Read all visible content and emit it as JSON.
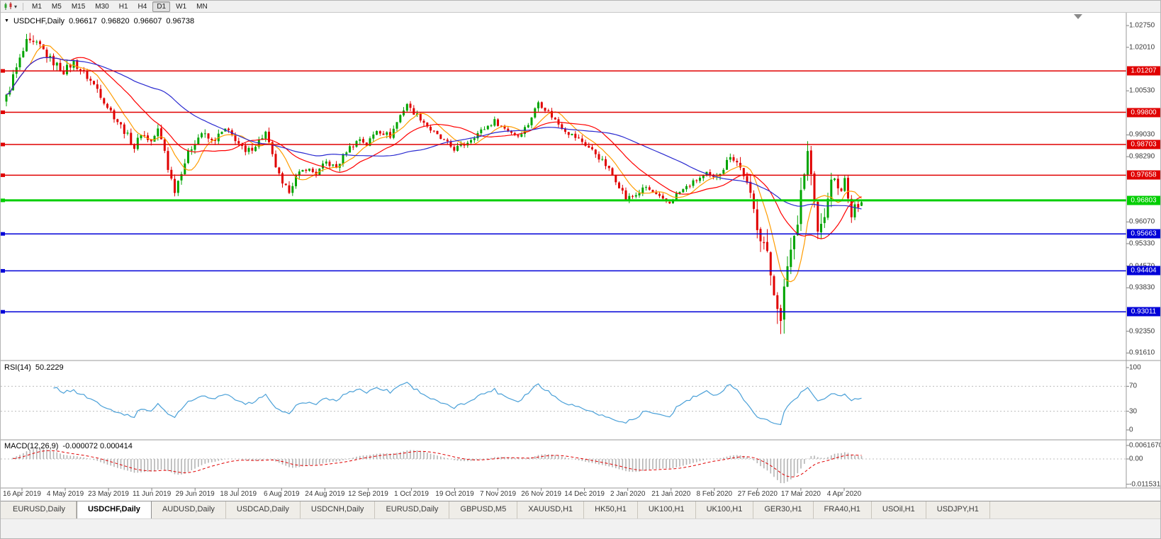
{
  "toolbar": {
    "timeframes": [
      {
        "label": "M1",
        "active": false
      },
      {
        "label": "M5",
        "active": false
      },
      {
        "label": "M15",
        "active": false
      },
      {
        "label": "M30",
        "active": false
      },
      {
        "label": "H1",
        "active": false
      },
      {
        "label": "H4",
        "active": false
      },
      {
        "label": "D1",
        "active": true
      },
      {
        "label": "W1",
        "active": false
      },
      {
        "label": "MN",
        "active": false
      }
    ]
  },
  "chart": {
    "symbol_title": "USDCHF,Daily",
    "ohlc": {
      "open": "0.96617",
      "high": "0.96820",
      "low": "0.96607",
      "close": "0.96738"
    }
  },
  "price_axis": {
    "ticks": [
      "1.02750",
      "1.02010",
      "1.00530",
      "0.99030",
      "0.98290",
      "0.96070",
      "0.95330",
      "0.94570",
      "0.93830",
      "0.92350",
      "0.91610"
    ]
  },
  "hlines": [
    {
      "price": "1.01207",
      "color": "#e00000",
      "role": "resistance",
      "thick": false
    },
    {
      "price": "0.99800",
      "color": "#e00000",
      "role": "resistance",
      "thick": false
    },
    {
      "price": "0.98703",
      "color": "#e00000",
      "role": "resistance",
      "thick": false
    },
    {
      "price": "0.97658",
      "color": "#e00000",
      "role": "resistance",
      "thick": false
    },
    {
      "price": "0.96803",
      "color": "#00ce00",
      "role": "current-price",
      "thick": true
    },
    {
      "price": "0.95663",
      "color": "#0000d8",
      "role": "support",
      "thick": false
    },
    {
      "price": "0.94404",
      "color": "#0000d8",
      "role": "support",
      "thick": false
    },
    {
      "price": "0.93011",
      "color": "#0000d8",
      "role": "support",
      "thick": false
    }
  ],
  "indicators": {
    "rsi": {
      "label": "RSI(14)",
      "value": "50.2229",
      "levels": [
        {
          "label": "100",
          "value": 100
        },
        {
          "label": "70",
          "value": 70
        },
        {
          "label": "30",
          "value": 30
        },
        {
          "label": "0",
          "value": 0
        }
      ],
      "dashed_levels": [
        70,
        30
      ]
    },
    "macd": {
      "label": "MACD(12,26,9)",
      "values": "-0.000072 0.000414",
      "axis": [
        {
          "label": "0.0061670",
          "value": 0.006167
        },
        {
          "label": "0.00",
          "value": 0
        },
        {
          "label": "-0.0115310",
          "value": -0.011531
        }
      ]
    }
  },
  "date_axis": {
    "labels": [
      "16 Apr 2019",
      "4 May 2019",
      "23 May 2019",
      "11 Jun 2019",
      "29 Jun 2019",
      "18 Jul 2019",
      "6 Aug 2019",
      "24 Aug 2019",
      "12 Sep 2019",
      "1 Oct 2019",
      "19 Oct 2019",
      "7 Nov 2019",
      "26 Nov 2019",
      "14 Dec 2019",
      "2 Jan 2020",
      "21 Jan 2020",
      "8 Feb 2020",
      "27 Feb 2020",
      "17 Mar 2020",
      "4 Apr 2020"
    ]
  },
  "tabs": [
    {
      "label": "EURUSD,Daily",
      "active": false
    },
    {
      "label": "USDCHF,Daily",
      "active": true
    },
    {
      "label": "AUDUSD,Daily",
      "active": false
    },
    {
      "label": "USDCAD,Daily",
      "active": false
    },
    {
      "label": "USDCNH,Daily",
      "active": false
    },
    {
      "label": "EURUSD,Daily",
      "active": false
    },
    {
      "label": "GBPUSD,M5",
      "active": false
    },
    {
      "label": "XAUUSD,H1",
      "active": false
    },
    {
      "label": "HK50,H1",
      "active": false
    },
    {
      "label": "UK100,H1",
      "active": false
    },
    {
      "label": "UK100,H1",
      "active": false
    },
    {
      "label": "GER30,H1",
      "active": false
    },
    {
      "label": "FRA40,H1",
      "active": false
    },
    {
      "label": "USOil,H1",
      "active": false
    },
    {
      "label": "USDJPY,H1",
      "active": false
    }
  ],
  "colors": {
    "candle_up": "#00a400",
    "candle_down": "#e00000",
    "rsi_line": "#4aa0d8",
    "macd_hist": "#b4b4b4",
    "macd_signal": "#e00000",
    "separator": "#9a9a9a",
    "tick": "#808080",
    "level_dash": "#bdbdbd"
  },
  "chart_data": {
    "type": "candlestick",
    "symbol": "USDCHF",
    "timeframe": "Daily",
    "title": "USDCHF,Daily",
    "last_ohlc": {
      "open": 0.96617,
      "high": 0.9682,
      "low": 0.96607,
      "close": 0.96738
    },
    "num_candles": 255,
    "y_axis_range": [
      0.9124,
      1.0327
    ],
    "y_axis_ticks": [
      1.0275,
      1.0201,
      1.0053,
      0.9903,
      0.9829,
      0.9607,
      0.9533,
      0.9457,
      0.9383,
      0.9235,
      0.9161
    ],
    "x_axis_labels": [
      "16 Apr 2019",
      "4 May 2019",
      "23 May 2019",
      "11 Jun 2019",
      "29 Jun 2019",
      "18 Jul 2019",
      "6 Aug 2019",
      "24 Aug 2019",
      "12 Sep 2019",
      "1 Oct 2019",
      "19 Oct 2019",
      "7 Nov 2019",
      "26 Nov 2019",
      "14 Dec 2019",
      "2 Jan 2020",
      "21 Jan 2020",
      "8 Feb 2020",
      "27 Feb 2020",
      "17 Mar 2020",
      "4 Apr 2020"
    ],
    "horizontal_levels": {
      "resistance": [
        1.01207,
        0.998,
        0.98703,
        0.97658
      ],
      "current": 0.96803,
      "support": [
        0.95663,
        0.94404,
        0.93011
      ]
    },
    "indicators": {
      "rsi_period": 14,
      "rsi_last": 50.2229,
      "macd_params": [
        12,
        26,
        9
      ],
      "macd_last": -7.2e-05,
      "macd_signal_last": 0.000414
    },
    "moving_averages": [
      {
        "period": 8,
        "color": "#ff9c00"
      },
      {
        "period": 20,
        "color": "#ff0000"
      },
      {
        "period": 45,
        "color": "#2a2ad0"
      }
    ],
    "price_path_anchors": [
      [
        0,
        1.003
      ],
      [
        2,
        1.01
      ],
      [
        6,
        1.0215
      ],
      [
        10,
        1.0205
      ],
      [
        13,
        1.016
      ],
      [
        17,
        1.012
      ],
      [
        20,
        1.015
      ],
      [
        24,
        1.01
      ],
      [
        27,
        1.006
      ],
      [
        30,
        1.0
      ],
      [
        33,
        0.995
      ],
      [
        36,
        0.99
      ],
      [
        38,
        0.986
      ],
      [
        40,
        0.991
      ],
      [
        43,
        0.988
      ],
      [
        45,
        0.992
      ],
      [
        47,
        0.985
      ],
      [
        48,
        0.979
      ],
      [
        50,
        0.9715
      ],
      [
        52,
        0.978
      ],
      [
        54,
        0.984
      ],
      [
        56,
        0.988
      ],
      [
        58,
        0.991
      ],
      [
        61,
        0.988
      ],
      [
        65,
        0.992
      ],
      [
        68,
        0.989
      ],
      [
        71,
        0.984
      ],
      [
        74,
        0.987
      ],
      [
        77,
        0.991
      ],
      [
        79,
        0.983
      ],
      [
        82,
        0.973
      ],
      [
        84,
        0.9715
      ],
      [
        86,
        0.976
      ],
      [
        89,
        0.979
      ],
      [
        92,
        0.977
      ],
      [
        95,
        0.981
      ],
      [
        98,
        0.979
      ],
      [
        101,
        0.985
      ],
      [
        105,
        0.989
      ],
      [
        107,
        0.987
      ],
      [
        110,
        0.992
      ],
      [
        114,
        0.99
      ],
      [
        117,
        0.997
      ],
      [
        119,
        1.001
      ],
      [
        120,
        0.999
      ],
      [
        123,
        0.996
      ],
      [
        126,
        0.992
      ],
      [
        129,
        0.989
      ],
      [
        133,
        0.9855
      ],
      [
        136,
        0.987
      ],
      [
        139,
        0.99
      ],
      [
        142,
        0.9925
      ],
      [
        145,
        0.995
      ],
      [
        148,
        0.9925
      ],
      [
        152,
        0.99
      ],
      [
        155,
        0.994
      ],
      [
        157,
        0.999
      ],
      [
        158,
        1.0015
      ],
      [
        161,
        0.998
      ],
      [
        164,
        0.994
      ],
      [
        167,
        0.991
      ],
      [
        171,
        0.988
      ],
      [
        175,
        0.984
      ],
      [
        178,
        0.98
      ],
      [
        181,
        0.975
      ],
      [
        183,
        0.971
      ],
      [
        184,
        0.9685
      ],
      [
        187,
        0.97
      ],
      [
        190,
        0.9725
      ],
      [
        192,
        0.9705
      ],
      [
        195,
        0.968
      ],
      [
        197,
        0.9672
      ],
      [
        199,
        0.97
      ],
      [
        202,
        0.9725
      ],
      [
        205,
        0.975
      ],
      [
        208,
        0.977
      ],
      [
        210,
        0.9755
      ],
      [
        213,
        0.979
      ],
      [
        215,
        0.9835
      ],
      [
        217,
        0.981
      ],
      [
        219,
        0.977
      ],
      [
        221,
        0.969
      ],
      [
        223,
        0.96
      ],
      [
        225,
        0.9535
      ],
      [
        227,
        0.943
      ],
      [
        229,
        0.934
      ],
      [
        230,
        0.925
      ],
      [
        231,
        0.936
      ],
      [
        232,
        0.947
      ],
      [
        234,
        0.956
      ],
      [
        235,
        0.963
      ],
      [
        236,
        0.972
      ],
      [
        238,
        0.984
      ],
      [
        239,
        0.977
      ],
      [
        240,
        0.966
      ],
      [
        241,
        0.957
      ],
      [
        243,
        0.962
      ],
      [
        244,
        0.97
      ],
      [
        246,
        0.9765
      ],
      [
        247,
        0.971
      ],
      [
        249,
        0.9745
      ],
      [
        250,
        0.968
      ],
      [
        251,
        0.9625
      ],
      [
        252,
        0.9655
      ],
      [
        254,
        0.9674
      ]
    ],
    "volatility_anchors": [
      [
        0,
        0.0045
      ],
      [
        15,
        0.0038
      ],
      [
        40,
        0.003
      ],
      [
        70,
        0.0032
      ],
      [
        85,
        0.0028
      ],
      [
        120,
        0.0025
      ],
      [
        160,
        0.0024
      ],
      [
        185,
        0.0026
      ],
      [
        205,
        0.0022
      ],
      [
        215,
        0.0028
      ],
      [
        220,
        0.005
      ],
      [
        224,
        0.0085
      ],
      [
        228,
        0.011
      ],
      [
        232,
        0.0115
      ],
      [
        236,
        0.0095
      ],
      [
        240,
        0.009
      ],
      [
        244,
        0.0065
      ],
      [
        248,
        0.005
      ],
      [
        252,
        0.0035
      ],
      [
        254,
        0.0025
      ]
    ]
  }
}
